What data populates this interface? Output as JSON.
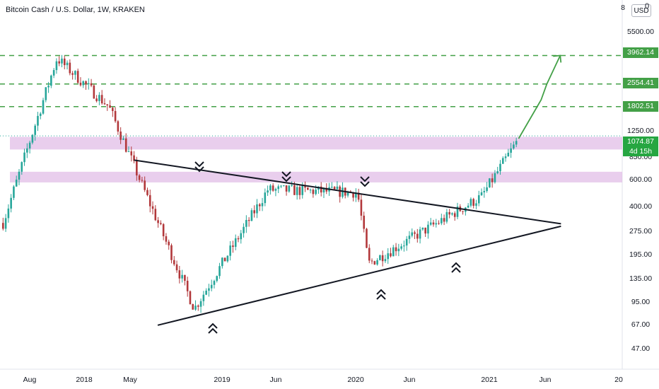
{
  "header": {
    "title": "Bitcoin Cash / U.S. Dollar, 1W, KRAKEN",
    "currency": "USD",
    "corner_tick": "0"
  },
  "price_axis": {
    "ticks": [
      "8",
      "5500.00",
      "1250.00",
      "850.00",
      "600.00",
      "400.00",
      "275.00",
      "195.00",
      "135.00",
      "95.00",
      "67.00",
      "47.00"
    ]
  },
  "time_axis": {
    "ticks": [
      "Aug",
      "2018",
      "May",
      "2019",
      "Jun",
      "2020",
      "Jun",
      "2021",
      "Jun",
      "20"
    ]
  },
  "price_labels": {
    "target_3": "3962.14",
    "target_2": "2554.41",
    "target_1": "1802.51",
    "last": "1074.87",
    "countdown": "4d 15h"
  },
  "colors": {
    "up": "#26a69a",
    "down": "#b2383b",
    "zone": "#e1bee7",
    "target_line": "#43a047",
    "projection": "#43a047",
    "trendline": "#131722"
  },
  "chart_data": {
    "type": "candlestick",
    "symbol": "Bitcoin Cash / U.S. Dollar",
    "interval": "1W",
    "exchange": "KRAKEN",
    "scale": "log",
    "ylim": [
      40,
      8000
    ],
    "x_start": "2017-07-24",
    "x_end": "2022-01-01",
    "key_points": [
      {
        "date": "2017-08-01",
        "price": 300
      },
      {
        "date": "2017-12-20",
        "price": 3800
      },
      {
        "date": "2018-05-05",
        "price": 1800
      },
      {
        "date": "2018-12-15",
        "price": 80
      },
      {
        "date": "2019-06-25",
        "price": 500
      },
      {
        "date": "2020-02-15",
        "price": 480
      },
      {
        "date": "2020-03-15",
        "price": 160
      },
      {
        "date": "2021-01-05",
        "price": 450
      },
      {
        "date": "2021-04-10",
        "price": 1074.87
      }
    ],
    "levels": [
      3962.14,
      2554.41,
      1802.51
    ],
    "last_price": 1074.87,
    "zones": [
      {
        "low": 930,
        "high": 1130
      },
      {
        "low": 560,
        "high": 660
      }
    ],
    "triangle": {
      "upper": {
        "from": [
          "2018-07-10",
          790
        ],
        "to": [
          "2021-08-01",
          296
        ]
      },
      "lower": {
        "from": [
          "2018-09-10",
          62
        ],
        "to": [
          "2021-08-01",
          285
        ]
      }
    },
    "projection": [
      [
        "2021-04-12",
        1100
      ],
      [
        "2021-06-10",
        2000
      ],
      [
        "2021-06-25",
        2554
      ],
      [
        "2021-07-30",
        3962
      ]
    ]
  }
}
